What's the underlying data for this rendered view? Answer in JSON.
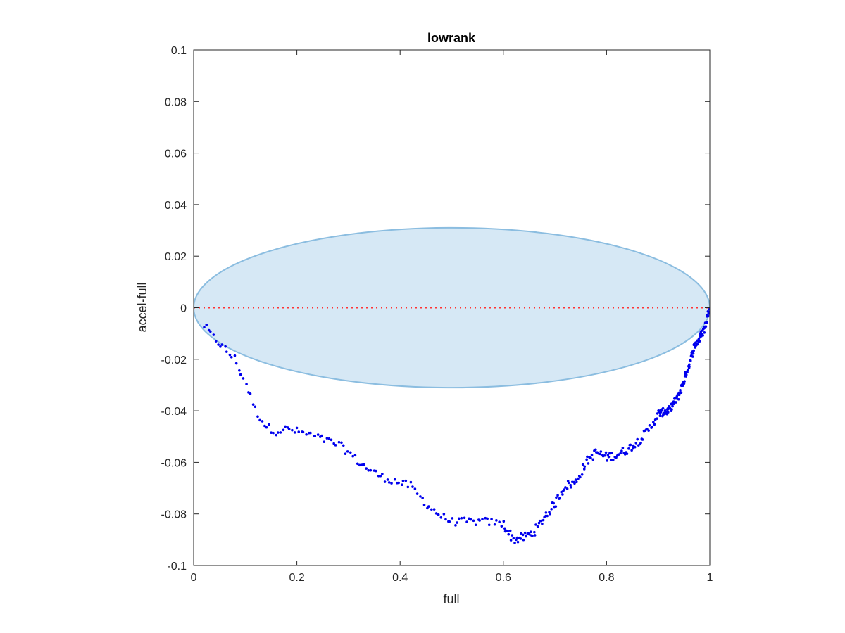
{
  "chart_data": {
    "type": "scatter",
    "title": "lowrank",
    "xlabel": "full",
    "ylabel": "accel-full",
    "xlim": [
      0,
      1
    ],
    "ylim": [
      -0.1,
      0.1
    ],
    "xticks": [
      0,
      0.2,
      0.4,
      0.6,
      0.8,
      1
    ],
    "xtick_labels": [
      "0",
      "0.2",
      "0.4",
      "0.6",
      "0.8",
      "1"
    ],
    "yticks": [
      -0.1,
      -0.08,
      -0.06,
      -0.04,
      -0.02,
      0,
      0.02,
      0.04,
      0.06,
      0.08,
      0.1
    ],
    "ytick_labels": [
      "-0.1",
      "-0.08",
      "-0.06",
      "-0.04",
      "-0.02",
      "0",
      "0.02",
      "0.04",
      "0.06",
      "0.08",
      "0.1"
    ],
    "grid": false,
    "colors": {
      "points": "#0000ee",
      "reference_line": "#ff3333",
      "ellipse_fill": "#d6e8f5",
      "ellipse_stroke": "#8bbde0",
      "axes": "#262626"
    },
    "reference_line": {
      "y": 0,
      "style": "dotted"
    },
    "ellipse": {
      "cx": 0.5,
      "cy": 0,
      "rx": 0.5,
      "ry": 0.031
    },
    "curve_points": [
      [
        0.0,
        0.0
      ],
      [
        0.02,
        -0.007
      ],
      [
        0.04,
        -0.012
      ],
      [
        0.06,
        -0.016
      ],
      [
        0.08,
        -0.02
      ],
      [
        0.1,
        -0.029
      ],
      [
        0.12,
        -0.04
      ],
      [
        0.14,
        -0.046
      ],
      [
        0.16,
        -0.048
      ],
      [
        0.18,
        -0.047
      ],
      [
        0.2,
        -0.048
      ],
      [
        0.22,
        -0.049
      ],
      [
        0.25,
        -0.051
      ],
      [
        0.28,
        -0.053
      ],
      [
        0.3,
        -0.056
      ],
      [
        0.32,
        -0.06
      ],
      [
        0.35,
        -0.064
      ],
      [
        0.37,
        -0.066
      ],
      [
        0.4,
        -0.068
      ],
      [
        0.42,
        -0.069
      ],
      [
        0.45,
        -0.076
      ],
      [
        0.48,
        -0.081
      ],
      [
        0.5,
        -0.083
      ],
      [
        0.52,
        -0.083
      ],
      [
        0.55,
        -0.083
      ],
      [
        0.57,
        -0.083
      ],
      [
        0.6,
        -0.084
      ],
      [
        0.62,
        -0.09
      ],
      [
        0.64,
        -0.089
      ],
      [
        0.66,
        -0.087
      ],
      [
        0.68,
        -0.081
      ],
      [
        0.7,
        -0.076
      ],
      [
        0.72,
        -0.069
      ],
      [
        0.74,
        -0.068
      ],
      [
        0.76,
        -0.06
      ],
      [
        0.78,
        -0.056
      ],
      [
        0.8,
        -0.058
      ],
      [
        0.82,
        -0.057
      ],
      [
        0.84,
        -0.055
      ],
      [
        0.86,
        -0.052
      ],
      [
        0.88,
        -0.048
      ],
      [
        0.9,
        -0.041
      ],
      [
        0.92,
        -0.04
      ],
      [
        0.94,
        -0.034
      ],
      [
        0.96,
        -0.022
      ],
      [
        0.97,
        -0.015
      ],
      [
        0.98,
        -0.012
      ],
      [
        0.99,
        -0.008
      ],
      [
        1.0,
        0.001
      ]
    ]
  }
}
